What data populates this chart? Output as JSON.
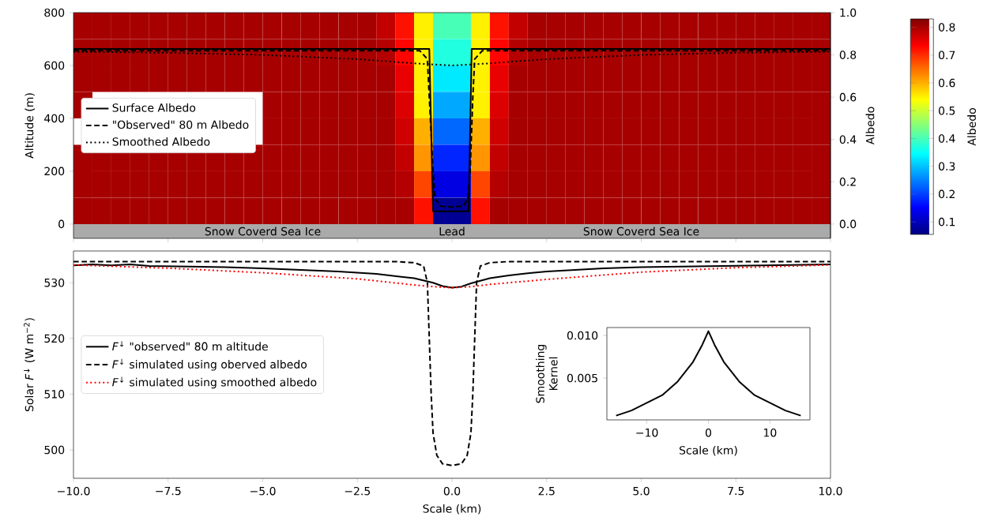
{
  "chart_data": [
    {
      "type": "heatmap",
      "categories": [
        null,
        null,
        null,
        null,
        null,
        null,
        null,
        null,
        null,
        null,
        null,
        null,
        null,
        null,
        null,
        null,
        null,
        null,
        null,
        null,
        null,
        null,
        null,
        null,
        null,
        null,
        null,
        null,
        null,
        null,
        null,
        null,
        null,
        null,
        null,
        null,
        null,
        null,
        null,
        null
      ],
      "y_categories": [
        null,
        null,
        null,
        null,
        null,
        null,
        null,
        null
      ],
      "cells": [
        [
          0.8,
          0.8,
          0.8,
          0.8,
          0.8,
          0.8,
          0.8,
          0.8,
          0.8,
          0.8,
          0.8,
          0.8,
          0.8,
          0.8,
          0.8,
          0.8,
          0.78,
          0.72,
          0.55,
          0.4,
          0.4,
          0.55,
          0.72,
          0.78,
          0.8,
          0.8,
          0.8,
          0.8,
          0.8,
          0.8,
          0.8,
          0.8,
          0.8,
          0.8,
          0.8,
          0.8,
          0.8,
          0.8,
          0.8,
          0.8
        ],
        [
          0.8,
          0.8,
          0.8,
          0.8,
          0.8,
          0.8,
          0.8,
          0.8,
          0.8,
          0.8,
          0.8,
          0.8,
          0.8,
          0.8,
          0.8,
          0.8,
          0.79,
          0.73,
          0.55,
          0.37,
          0.37,
          0.55,
          0.73,
          0.79,
          0.8,
          0.8,
          0.8,
          0.8,
          0.8,
          0.8,
          0.8,
          0.8,
          0.8,
          0.8,
          0.8,
          0.8,
          0.8,
          0.8,
          0.8,
          0.8
        ],
        [
          0.8,
          0.8,
          0.8,
          0.8,
          0.8,
          0.8,
          0.8,
          0.8,
          0.8,
          0.8,
          0.8,
          0.8,
          0.8,
          0.8,
          0.8,
          0.8,
          0.8,
          0.75,
          0.55,
          0.33,
          0.33,
          0.55,
          0.75,
          0.8,
          0.8,
          0.8,
          0.8,
          0.8,
          0.8,
          0.8,
          0.8,
          0.8,
          0.8,
          0.8,
          0.8,
          0.8,
          0.8,
          0.8,
          0.8,
          0.8
        ],
        [
          0.8,
          null,
          null,
          null,
          null,
          null,
          null,
          null,
          null,
          null,
          0.8,
          0.8,
          0.8,
          0.8,
          0.8,
          0.8,
          0.8,
          0.76,
          0.55,
          0.28,
          0.28,
          0.55,
          0.76,
          0.8,
          0.8,
          0.8,
          0.8,
          0.8,
          0.8,
          0.8,
          0.8,
          0.8,
          0.8,
          0.8,
          0.8,
          0.8,
          0.8,
          0.8,
          0.8,
          0.8
        ],
        [
          null,
          null,
          null,
          null,
          null,
          null,
          null,
          null,
          null,
          null,
          0.8,
          0.8,
          0.8,
          0.8,
          0.8,
          0.8,
          0.8,
          0.77,
          0.6,
          0.23,
          0.23,
          0.6,
          0.77,
          0.8,
          0.8,
          0.8,
          0.8,
          0.8,
          0.8,
          0.8,
          0.8,
          0.8,
          0.8,
          0.8,
          0.8,
          0.8,
          0.8,
          0.8,
          0.8,
          0.8
        ],
        [
          0.8,
          0.8,
          0.8,
          0.8,
          0.8,
          0.8,
          0.8,
          0.8,
          0.8,
          0.8,
          0.8,
          0.8,
          0.8,
          0.8,
          0.8,
          0.8,
          0.8,
          0.78,
          0.62,
          0.18,
          0.18,
          0.62,
          0.78,
          0.8,
          0.8,
          0.8,
          0.8,
          0.8,
          0.8,
          0.8,
          0.8,
          0.8,
          0.8,
          0.8,
          0.8,
          0.8,
          0.8,
          0.8,
          0.8,
          0.8
        ],
        [
          0.8,
          0.8,
          0.8,
          0.8,
          0.8,
          0.8,
          0.8,
          0.8,
          0.8,
          0.8,
          0.8,
          0.8,
          0.8,
          0.8,
          0.8,
          0.8,
          0.8,
          0.79,
          0.68,
          0.13,
          0.13,
          0.68,
          0.79,
          0.8,
          0.8,
          0.8,
          0.8,
          0.8,
          0.8,
          0.8,
          0.8,
          0.8,
          0.8,
          0.8,
          0.8,
          0.8,
          0.8,
          0.8,
          0.8,
          0.8
        ],
        [
          0.8,
          0.8,
          0.8,
          0.8,
          0.8,
          0.8,
          0.8,
          0.8,
          0.8,
          0.8,
          0.8,
          0.8,
          0.8,
          0.8,
          0.8,
          0.8,
          0.8,
          0.8,
          0.72,
          0.07,
          0.07,
          0.72,
          0.8,
          0.8,
          0.8,
          0.8,
          0.8,
          0.8,
          0.8,
          0.8,
          0.8,
          0.8,
          0.8,
          0.8,
          0.8,
          0.8,
          0.8,
          0.8,
          0.8,
          0.8
        ]
      ],
      "clim": [
        0.055,
        0.83
      ],
      "cticks": [
        {
          "value": 0.1,
          "label": "0.1"
        },
        {
          "value": 0.2,
          "label": "0.2"
        },
        {
          "value": 0.3,
          "label": "0.3"
        },
        {
          "value": 0.4,
          "label": "0.4"
        },
        {
          "value": 0.5,
          "label": "0.5"
        },
        {
          "value": 0.6,
          "label": "0.6"
        },
        {
          "value": 0.7,
          "label": "0.7"
        },
        {
          "value": 0.8,
          "label": "0.8"
        }
      ],
      "clabel": "Albedo"
    },
    {
      "type": "line",
      "xlim": [
        -10,
        10
      ],
      "xticks": [
        -10,
        -7.5,
        -5,
        -2.5,
        0,
        2.5,
        5,
        7.5,
        10
      ],
      "tick_labels": "y",
      "ylim": [
        -54,
        800
      ],
      "yticks": [
        {
          "value": 0,
          "label": "0"
        },
        {
          "value": 200,
          "label": "200"
        },
        {
          "value": 400,
          "label": "400"
        },
        {
          "value": 600,
          "label": "600"
        },
        {
          "value": 800,
          "label": "800"
        }
      ],
      "ylabel": "Altitude (m)",
      "y2lim": [
        -0.0675,
        1.0
      ],
      "y2ticks": [
        {
          "value": 0,
          "label": "0.0"
        },
        {
          "value": 0.2,
          "label": "0.2"
        },
        {
          "value": 0.4,
          "label": "0.4"
        },
        {
          "value": 0.6,
          "label": "0.6"
        },
        {
          "value": 0.8,
          "label": "0.8"
        },
        {
          "value": 1.0,
          "label": "1.0"
        }
      ],
      "y2label": "Albedo",
      "legend": "left",
      "series": [
        {
          "name": "Surface Albedo",
          "color": "#000000",
          "axis": "y2",
          "line_style": "solid",
          "x": [
            -10,
            -0.6,
            -0.5,
            0.44,
            0.52,
            10
          ],
          "values": [
            0.828,
            0.828,
            0.06,
            0.06,
            0.828,
            0.828
          ]
        },
        {
          "name": "\"Observed\" 80 m Albedo",
          "color": "#000000",
          "axis": "y2",
          "line_style": "dashed",
          "x": [
            -10,
            -0.85,
            -0.65,
            -0.6,
            -0.5,
            -0.45,
            -0.3,
            0,
            0.3,
            0.42,
            0.48,
            0.55,
            0.6,
            0.8,
            10
          ],
          "values": [
            0.82,
            0.82,
            0.78,
            0.6,
            0.25,
            0.12,
            0.085,
            0.08,
            0.085,
            0.12,
            0.25,
            0.6,
            0.78,
            0.82,
            0.82
          ]
        },
        {
          "name": "Smoothed Albedo",
          "color": "#000000",
          "axis": "y2",
          "line_style": "dotted",
          "x": [
            -10,
            -7.5,
            -5,
            -2.5,
            -1,
            0,
            1,
            2.5,
            5,
            7.5,
            10
          ],
          "values": [
            0.815,
            0.81,
            0.8,
            0.78,
            0.76,
            0.75,
            0.76,
            0.78,
            0.8,
            0.81,
            0.815
          ]
        }
      ],
      "bands": [
        {
          "axis": "y",
          "from": -54,
          "to": 0,
          "color": "#aaaaaa"
        }
      ],
      "annotations": [
        "Snow Coverd Sea Ice",
        "Lead",
        "Snow Coverd Sea Ice"
      ]
    },
    {
      "type": "line",
      "xlim": [
        -10,
        10
      ],
      "xticks": [
        {
          "value": -10,
          "label": "−10.0"
        },
        {
          "value": -7.5,
          "label": "−7.5"
        },
        {
          "value": -5,
          "label": "−5.0"
        },
        {
          "value": -2.5,
          "label": "−2.5"
        },
        {
          "value": 0,
          "label": "0.0"
        },
        {
          "value": 2.5,
          "label": "2.5"
        },
        {
          "value": 5,
          "label": "5.0"
        },
        {
          "value": 7.5,
          "label": "7.5"
        },
        {
          "value": 10,
          "label": "10.0"
        }
      ],
      "ylim": [
        494.9,
        535.7
      ],
      "yticks": [
        {
          "value": 500,
          "label": "500"
        },
        {
          "value": 510,
          "label": "510"
        },
        {
          "value": 520,
          "label": "520"
        },
        {
          "value": 530,
          "label": "530"
        }
      ],
      "xlabel": "Scale (km)",
      "ylabel": "Solar *F*$^{↓}$ (W m$^{−2}$)",
      "legend": "left",
      "series": [
        {
          "name": "*F*$^{↓}$ \"observed\" 80 m altitude",
          "color": "#000000",
          "line_style": "solid",
          "x": [
            -10,
            -9.5,
            -9,
            -8.5,
            -8,
            -7,
            -6,
            -5,
            -4,
            -3,
            -2.5,
            -2,
            -1.5,
            -1,
            -0.5,
            -0.25,
            0,
            0.25,
            0.5,
            1,
            1.5,
            2,
            2.5,
            3,
            4,
            5,
            6,
            7,
            8,
            9,
            10
          ],
          "values": [
            533.1,
            533.3,
            533.1,
            533.3,
            533.0,
            532.9,
            532.8,
            532.6,
            532.3,
            532.0,
            531.8,
            531.6,
            531.2,
            530.8,
            530.0,
            529.4,
            529.1,
            529.3,
            529.9,
            530.8,
            531.3,
            531.7,
            532.0,
            532.2,
            532.6,
            532.8,
            532.9,
            533.0,
            533.1,
            533.2,
            533.3
          ]
        },
        {
          "name": "*F*$^{↓}$ simulated using oberved albedo",
          "color": "#000000",
          "line_style": "dashed",
          "x": [
            -10,
            -1.5,
            -1,
            -0.75,
            -0.65,
            -0.6,
            -0.55,
            -0.5,
            -0.4,
            -0.25,
            0,
            0.25,
            0.4,
            0.5,
            0.55,
            0.6,
            0.65,
            0.75,
            1,
            1.5,
            10
          ],
          "values": [
            533.8,
            533.8,
            533.6,
            533.0,
            530,
            520,
            510,
            503,
            499,
            497.5,
            497.2,
            497.5,
            499,
            503,
            510,
            520,
            530,
            533.0,
            533.6,
            533.8,
            533.8
          ]
        },
        {
          "name": "*F*$^{↓}$ simulated using smoothed albedo",
          "color": "#ff0000",
          "line_style": "dotted",
          "x": [
            -10,
            -7.5,
            -5,
            -2.5,
            -1,
            -0.5,
            0,
            0.5,
            1,
            2.5,
            5,
            7.5,
            10
          ],
          "values": [
            533.2,
            532.6,
            531.8,
            530.7,
            529.6,
            529.3,
            529.1,
            529.3,
            529.7,
            530.6,
            531.9,
            532.7,
            533.2
          ]
        }
      ]
    },
    {
      "type": "line",
      "xlim": [
        -16.5,
        16.5
      ],
      "xticks": [
        {
          "value": -10,
          "label": "−10"
        },
        {
          "value": 0,
          "label": "0"
        },
        {
          "value": 10,
          "label": "10"
        }
      ],
      "ylim": [
        0.0001,
        0.01093
      ],
      "yticks": [
        {
          "value": 0.005,
          "label": "0.005"
        },
        {
          "value": 0.01,
          "label": "0.010"
        }
      ],
      "xlabel": "Scale (km)",
      "ylabel": "Smoothing Kernel",
      "series": [
        {
          "color": "#000000",
          "line_style": "solid",
          "x": [
            -15,
            -12.5,
            -10,
            -7.5,
            -5,
            -2.5,
            -1,
            0,
            1,
            2.5,
            5,
            7.5,
            10,
            12.5,
            15
          ],
          "values": [
            0.0006,
            0.0012,
            0.0021,
            0.003,
            0.0046,
            0.0069,
            0.0089,
            0.0105,
            0.0089,
            0.0069,
            0.0046,
            0.003,
            0.0021,
            0.0012,
            0.0006
          ]
        }
      ]
    }
  ]
}
